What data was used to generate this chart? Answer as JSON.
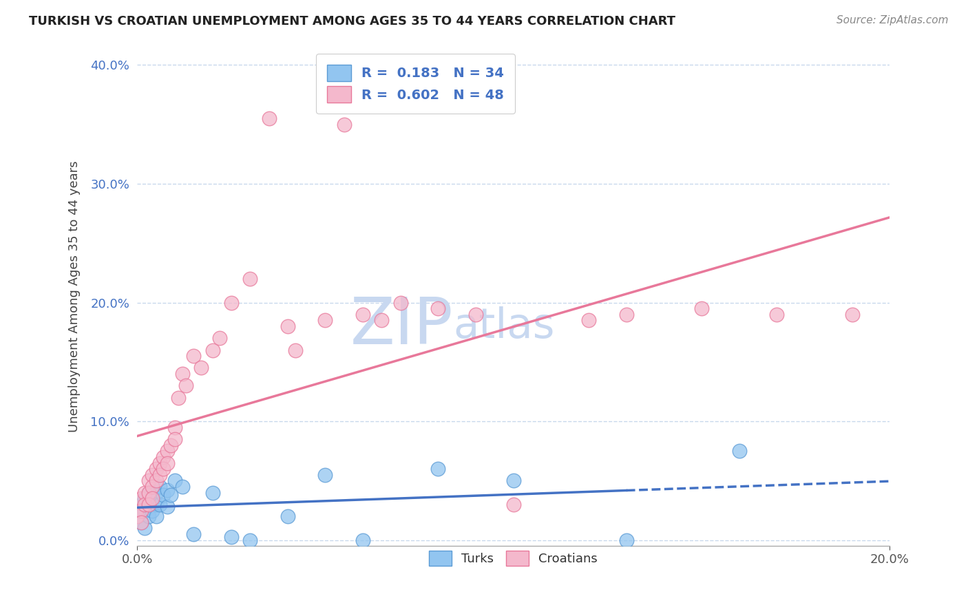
{
  "title": "TURKISH VS CROATIAN UNEMPLOYMENT AMONG AGES 35 TO 44 YEARS CORRELATION CHART",
  "source": "Source: ZipAtlas.com",
  "xlim": [
    0.0,
    0.2
  ],
  "ylim": [
    -0.005,
    0.415
  ],
  "turks_R": 0.183,
  "turks_N": 34,
  "croatians_R": 0.602,
  "croatians_N": 48,
  "turks_color": "#92C5F0",
  "turks_edge_color": "#5B9BD5",
  "croatians_color": "#F4B8CC",
  "croatians_edge_color": "#E8789A",
  "turks_line_color": "#4472C4",
  "croatians_line_color": "#E8789A",
  "background_color": "#ffffff",
  "grid_color": "#C8D8EC",
  "watermark_text": "ZIPatlas",
  "watermark_color": "#C8D8F0",
  "legend_label_turks": "R =  0.183   N = 34",
  "legend_label_croatians": "R =  0.602   N = 48",
  "turks_x": [
    0.0,
    0.001,
    0.001,
    0.001,
    0.002,
    0.002,
    0.002,
    0.003,
    0.003,
    0.003,
    0.004,
    0.004,
    0.005,
    0.005,
    0.005,
    0.006,
    0.006,
    0.007,
    0.008,
    0.008,
    0.009,
    0.01,
    0.012,
    0.015,
    0.02,
    0.025,
    0.03,
    0.04,
    0.05,
    0.06,
    0.08,
    0.1,
    0.13,
    0.16
  ],
  "turks_y": [
    0.02,
    0.03,
    0.025,
    0.015,
    0.035,
    0.025,
    0.01,
    0.04,
    0.03,
    0.02,
    0.035,
    0.025,
    0.04,
    0.03,
    0.02,
    0.045,
    0.03,
    0.038,
    0.042,
    0.028,
    0.038,
    0.05,
    0.045,
    0.005,
    0.04,
    0.003,
    0.0,
    0.02,
    0.055,
    0.0,
    0.06,
    0.05,
    0.0,
    0.075
  ],
  "croatians_x": [
    0.0,
    0.001,
    0.001,
    0.001,
    0.002,
    0.002,
    0.003,
    0.003,
    0.003,
    0.004,
    0.004,
    0.004,
    0.005,
    0.005,
    0.006,
    0.006,
    0.007,
    0.007,
    0.008,
    0.008,
    0.009,
    0.01,
    0.01,
    0.011,
    0.012,
    0.013,
    0.015,
    0.017,
    0.02,
    0.022,
    0.025,
    0.03,
    0.035,
    0.04,
    0.042,
    0.05,
    0.055,
    0.06,
    0.065,
    0.07,
    0.08,
    0.09,
    0.1,
    0.12,
    0.13,
    0.15,
    0.17,
    0.19
  ],
  "croatians_y": [
    0.02,
    0.035,
    0.025,
    0.015,
    0.04,
    0.03,
    0.05,
    0.04,
    0.03,
    0.055,
    0.045,
    0.035,
    0.06,
    0.05,
    0.065,
    0.055,
    0.07,
    0.06,
    0.075,
    0.065,
    0.08,
    0.095,
    0.085,
    0.12,
    0.14,
    0.13,
    0.155,
    0.145,
    0.16,
    0.17,
    0.2,
    0.22,
    0.355,
    0.18,
    0.16,
    0.185,
    0.35,
    0.19,
    0.185,
    0.2,
    0.195,
    0.19,
    0.03,
    0.185,
    0.19,
    0.195,
    0.19,
    0.19
  ],
  "xticks": [
    0.0,
    0.2
  ],
  "yticks": [
    0.0,
    0.1,
    0.2,
    0.3,
    0.4
  ]
}
